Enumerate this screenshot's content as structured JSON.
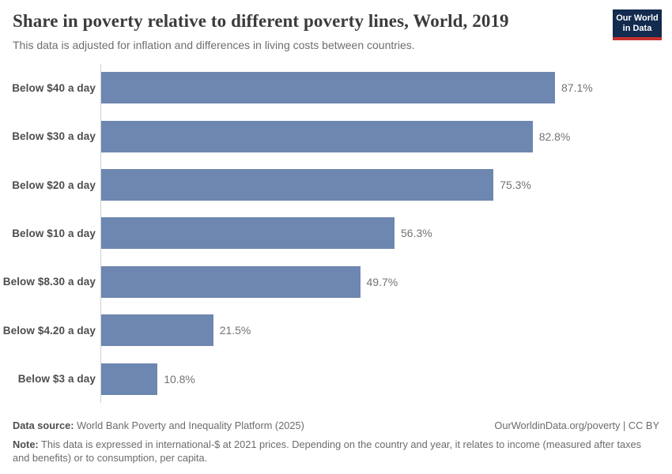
{
  "header": {
    "title": "Share in poverty relative to different poverty lines, World, 2019",
    "subtitle": "This data is adjusted for inflation and differences in living costs between countries.",
    "logo": {
      "line1": "Our World",
      "line2": "in Data"
    }
  },
  "chart_data": {
    "type": "bar",
    "orientation": "horizontal",
    "title": "Share in poverty relative to different poverty lines, World, 2019",
    "categories": [
      "Below $40 a day",
      "Below $30 a day",
      "Below $20 a day",
      "Below $10 a day",
      "Below $8.30 a day",
      "Below $4.20 a day",
      "Below $3 a day"
    ],
    "values": [
      87.1,
      82.8,
      75.3,
      56.3,
      49.7,
      21.5,
      10.8
    ],
    "value_labels": [
      "87.1%",
      "82.8%",
      "75.3%",
      "56.3%",
      "49.7%",
      "21.5%",
      "10.8%"
    ],
    "unit": "%",
    "xlim": [
      0,
      100
    ],
    "grid": false,
    "legend": false,
    "bar_color": "#6d87b0",
    "axis_color": "#ccd1d6"
  },
  "footer": {
    "source_label": "Data source:",
    "source_text": " World Bank Poverty and Inequality Platform (2025)",
    "credit": "OurWorldinData.org/poverty | CC BY",
    "note_label": "Note:",
    "note_text": " This data is expressed in international-$ at 2021 prices. Depending on the country and year, it relates to income (measured after taxes and benefits) or to consumption, per capita."
  }
}
